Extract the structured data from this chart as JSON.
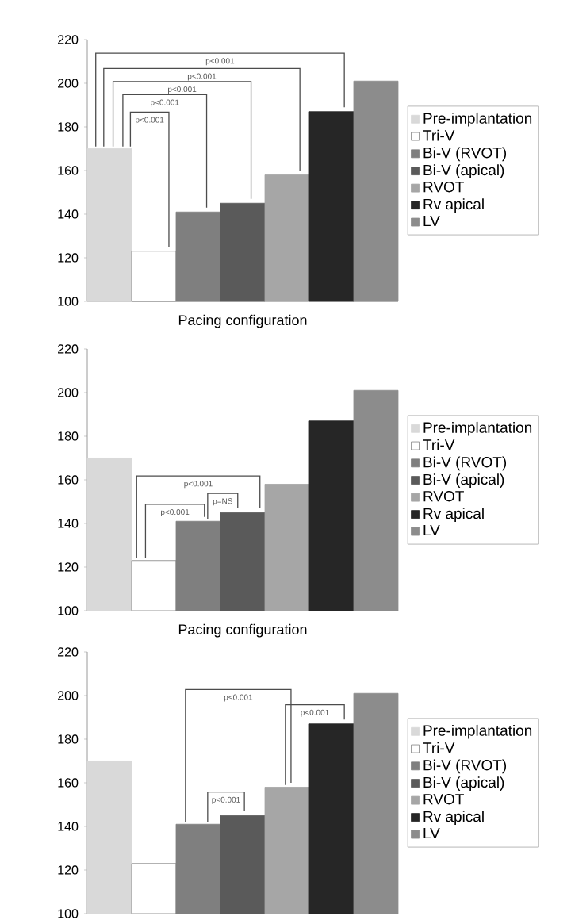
{
  "chart_data": [
    {
      "type": "bar",
      "xlabel": "Pacing configuration",
      "categories": [
        null
      ],
      "ylim": [
        100,
        220
      ],
      "yticks": [
        100,
        120,
        140,
        160,
        180,
        200,
        220
      ],
      "legend": "right",
      "series": [
        {
          "name": "Pre-implantation",
          "color": "#d9d9d9",
          "values": [
            170
          ]
        },
        {
          "name": "Tri-V",
          "color": "#ffffff",
          "values": [
            123
          ]
        },
        {
          "name": "Bi-V (RVOT)",
          "color": "#7f7f7f",
          "values": [
            141
          ]
        },
        {
          "name": "Bi-V (apical)",
          "color": "#5a5a5a",
          "values": [
            145
          ]
        },
        {
          "name": "RVOT",
          "color": "#a6a6a6",
          "values": [
            158
          ]
        },
        {
          "name": "Rv apical",
          "color": "#262626",
          "values": [
            187
          ]
        },
        {
          "name": "LV",
          "color": "#8c8c8c",
          "values": [
            201
          ]
        }
      ],
      "annotations": [
        "p<0.001",
        "p<0.001",
        "p<0.001",
        "p<0.001",
        "p<0.001"
      ]
    },
    {
      "type": "bar",
      "xlabel": "Pacing configuration",
      "categories": [
        null
      ],
      "ylim": [
        100,
        220
      ],
      "yticks": [
        100,
        120,
        140,
        160,
        180,
        200,
        220
      ],
      "legend": "right",
      "series": [
        {
          "name": "Pre-implantation",
          "color": "#d9d9d9",
          "values": [
            170
          ]
        },
        {
          "name": "Tri-V",
          "color": "#ffffff",
          "values": [
            123
          ]
        },
        {
          "name": "Bi-V (RVOT)",
          "color": "#7f7f7f",
          "values": [
            141
          ]
        },
        {
          "name": "Bi-V (apical)",
          "color": "#5a5a5a",
          "values": [
            145
          ]
        },
        {
          "name": "RVOT",
          "color": "#a6a6a6",
          "values": [
            158
          ]
        },
        {
          "name": "Rv apical",
          "color": "#262626",
          "values": [
            187
          ]
        },
        {
          "name": "LV",
          "color": "#8c8c8c",
          "values": [
            201
          ]
        }
      ],
      "annotations": [
        "p<0.001",
        "p<0.001",
        "p=NS"
      ]
    },
    {
      "type": "bar",
      "categories": [
        null
      ],
      "ylim": [
        100,
        220
      ],
      "yticks": [
        100,
        120,
        140,
        160,
        180,
        200,
        220
      ],
      "legend": "right",
      "series": [
        {
          "name": "Pre-implantation",
          "color": "#d9d9d9",
          "values": [
            170
          ]
        },
        {
          "name": "Tri-V",
          "color": "#ffffff",
          "values": [
            123
          ]
        },
        {
          "name": "Bi-V (RVOT)",
          "color": "#7f7f7f",
          "values": [
            141
          ]
        },
        {
          "name": "Bi-V (apical)",
          "color": "#5a5a5a",
          "values": [
            145
          ]
        },
        {
          "name": "RVOT",
          "color": "#a6a6a6",
          "values": [
            158
          ]
        },
        {
          "name": "Rv apical",
          "color": "#262626",
          "values": [
            187
          ]
        },
        {
          "name": "LV",
          "color": "#8c8c8c",
          "values": [
            201
          ]
        }
      ],
      "annotations": [
        "p<0.001",
        "p<0.001",
        "p<0.001"
      ]
    }
  ]
}
